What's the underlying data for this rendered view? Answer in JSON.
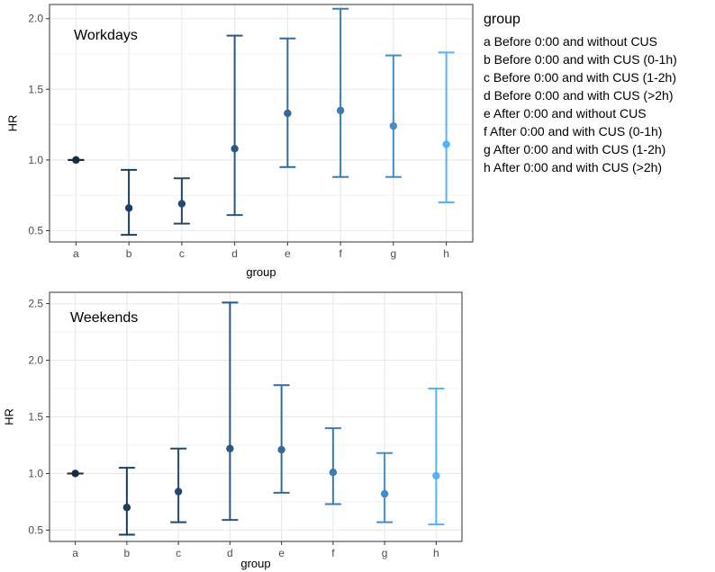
{
  "chart_data": [
    {
      "type": "scatter",
      "subtype": "point-with-error-bars",
      "panel_label": "Workdays",
      "xlabel": "group",
      "ylabel": "HR",
      "categories": [
        "a",
        "b",
        "c",
        "d",
        "e",
        "f",
        "g",
        "h"
      ],
      "y": [
        1.0,
        0.66,
        0.69,
        1.08,
        1.33,
        1.35,
        1.24,
        1.11
      ],
      "lower": [
        1.0,
        0.47,
        0.55,
        0.61,
        0.95,
        0.88,
        0.88,
        0.7
      ],
      "upper": [
        1.0,
        0.93,
        0.87,
        1.88,
        1.86,
        2.07,
        1.74,
        1.76
      ],
      "ylim": [
        0.42,
        2.1
      ],
      "yticks": [
        0.5,
        1.0,
        1.5,
        2.0
      ],
      "ytick_labels": [
        "0.5",
        "1.0",
        "1.5",
        "2.0"
      ],
      "grid": true
    },
    {
      "type": "scatter",
      "subtype": "point-with-error-bars",
      "panel_label": "Weekends",
      "xlabel": "group",
      "ylabel": "HR",
      "categories": [
        "a",
        "b",
        "c",
        "d",
        "e",
        "f",
        "g",
        "h"
      ],
      "y": [
        1.0,
        0.7,
        0.84,
        1.22,
        1.21,
        1.01,
        0.82,
        0.98
      ],
      "lower": [
        1.0,
        0.46,
        0.57,
        0.59,
        0.83,
        0.73,
        0.57,
        0.55
      ],
      "upper": [
        1.0,
        1.05,
        1.22,
        2.51,
        1.78,
        1.4,
        1.18,
        1.75
      ],
      "ylim": [
        0.4,
        2.6
      ],
      "yticks": [
        0.5,
        1.0,
        1.5,
        2.0,
        2.5
      ],
      "ytick_labels": [
        "0.5",
        "1.0",
        "1.5",
        "2.0",
        "2.5"
      ],
      "grid": true
    }
  ],
  "legend": {
    "title": "group",
    "position": "right",
    "items": [
      "a Before 0:00 and without CUS",
      "b Before 0:00 and with CUS (0-1h)",
      "c Before 0:00 and with CUS (1-2h)",
      "d Before 0:00 and with CUS (>2h)",
      "e After 0:00 and without CUS",
      "f After 0:00 and with CUS (0-1h)",
      "g After 0:00 and with CUS (1-2h)",
      "h After 0:00 and with CUS (>2h)"
    ]
  },
  "colors": {
    "groups": [
      "#132b43",
      "#1d3f5e",
      "#234a6d",
      "#2a5880",
      "#336a98",
      "#3c7cb0",
      "#458dc8",
      "#56b1f7"
    ],
    "grid": "#ebebeb",
    "panel_border": "#333333"
  }
}
